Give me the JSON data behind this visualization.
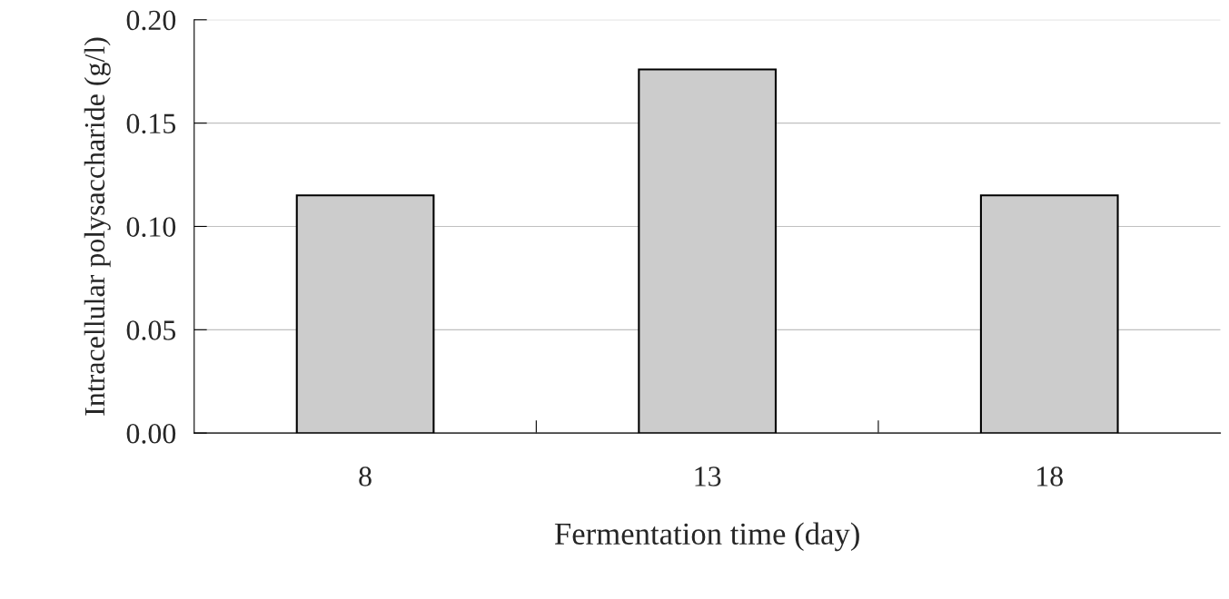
{
  "chart_data": {
    "type": "bar",
    "xlabel": "Fermentation time (day)",
    "ylabel": "Intracellular polysaccharide (g/l)",
    "categories": [
      "8",
      "13",
      "18"
    ],
    "values": [
      0.115,
      0.176,
      0.115
    ],
    "color": "#cccccc",
    "ylim": [
      0,
      0.2
    ],
    "yticks": [
      {
        "value": 0,
        "label": "0.00"
      },
      {
        "value": 0.05,
        "label": "0.05"
      },
      {
        "value": 0.1,
        "label": "0.10"
      },
      {
        "value": 0.15,
        "label": "0.15"
      },
      {
        "value": 0.2,
        "label": "0.20"
      }
    ],
    "grid": "y",
    "legend": false
  }
}
